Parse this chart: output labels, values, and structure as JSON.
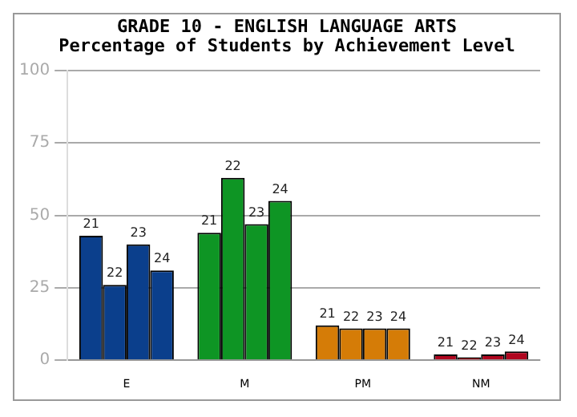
{
  "chart_data": {
    "type": "bar",
    "title": "GRADE 10 - ENGLISH LANGUAGE ARTS",
    "subtitle": "Percentage of Students by Achievement Level",
    "categories": [
      "E",
      "M",
      "PM",
      "NM"
    ],
    "series": [
      {
        "name": "21",
        "colors": [
          "#0b3f8c",
          "#0e9524",
          "#d57c07",
          "#b0061f"
        ],
        "values": [
          43,
          44,
          12,
          2
        ]
      },
      {
        "name": "22",
        "colors": [
          "#0b3f8c",
          "#0e9524",
          "#d57c07",
          "#b0061f"
        ],
        "values": [
          26,
          63,
          11,
          1
        ]
      },
      {
        "name": "23",
        "colors": [
          "#0b3f8c",
          "#0e9524",
          "#d57c07",
          "#b0061f"
        ],
        "values": [
          40,
          47,
          11,
          2
        ]
      },
      {
        "name": "24",
        "colors": [
          "#0b3f8c",
          "#0e9524",
          "#d57c07",
          "#b0061f"
        ],
        "values": [
          31,
          55,
          11,
          3
        ]
      }
    ],
    "ylim": [
      0,
      100
    ],
    "yticks": [
      0,
      25,
      50,
      75,
      100
    ],
    "grid": "y",
    "legend": false
  }
}
